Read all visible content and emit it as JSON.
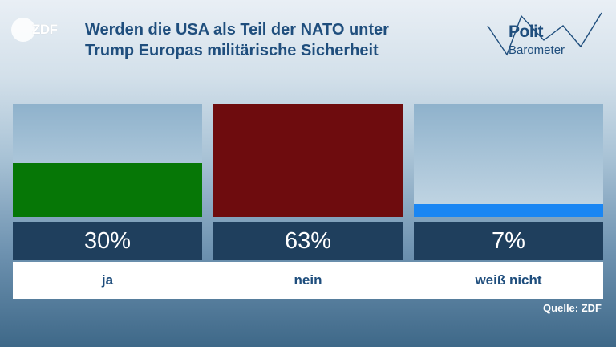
{
  "brand": {
    "logo_text": "ZDF",
    "politbarometer_line1": "Polit",
    "politbarometer_line2": "Barometer"
  },
  "title_lines": [
    "Werden die USA als Teil der NATO unter",
    "Trump Europas militärische Sicherheit"
  ],
  "source": "Quelle: ZDF",
  "colors": {
    "title": "#1f4e7d",
    "box": "#1f3f5d"
  },
  "chart_data": {
    "type": "bar",
    "categories": [
      "ja",
      "nein",
      "weiß nicht"
    ],
    "values": [
      30,
      63,
      7
    ],
    "value_labels": [
      "30%",
      "63%",
      "7%"
    ],
    "colors": [
      "#067706",
      "#6e0c0e",
      "#1a86f3"
    ],
    "ylim": [
      0,
      63
    ]
  }
}
